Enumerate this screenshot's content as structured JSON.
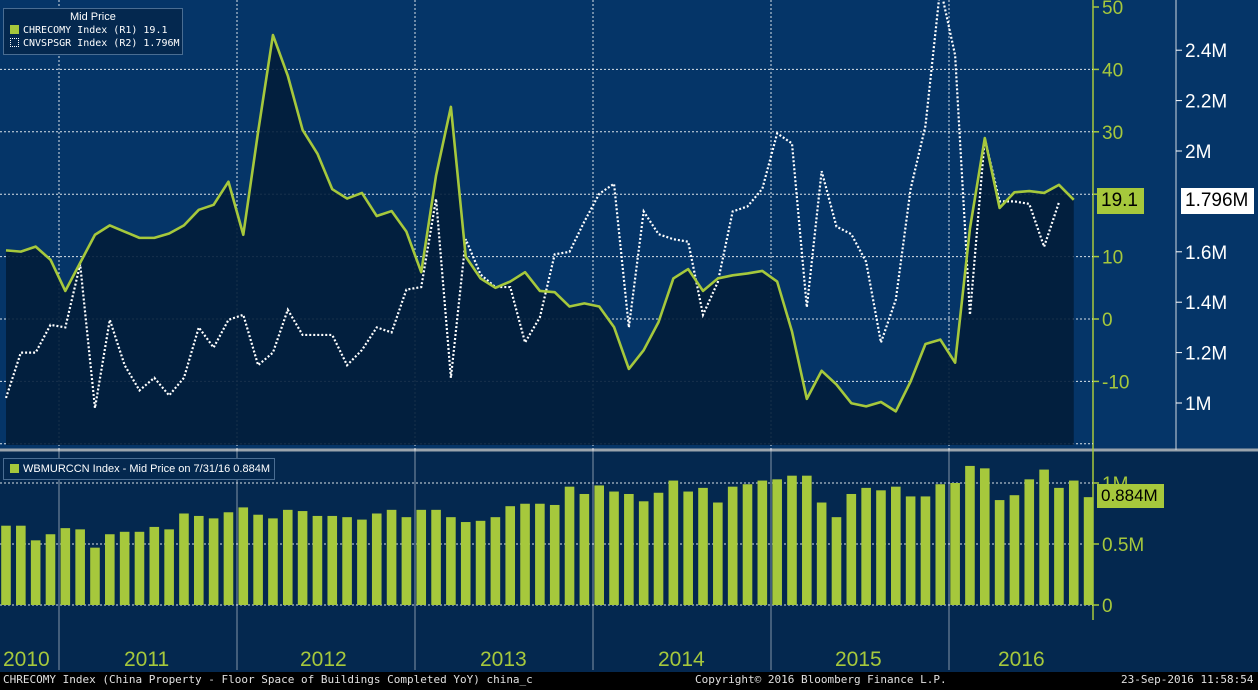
{
  "legend_top": {
    "header": "Mid Price",
    "entries": [
      {
        "label": "CHRECOMY Index  (R1) 19.1",
        "marker": "green-square-icon"
      },
      {
        "label": "CNVSPSGR Index  (R2) 1.796M",
        "marker": "dotted-square-icon"
      }
    ]
  },
  "legend_bottom": {
    "label": "WBMURCCN Index - Mid Price on 7/31/16  0.884M",
    "marker": "green-square-icon"
  },
  "last_value_tags": {
    "r1": "19.1",
    "r2": "1.796M",
    "volume": "0.884M"
  },
  "footer": {
    "left": "CHRECOMY Index (China Property - Floor Space of Buildings Completed YoY) china_c",
    "center": "Copyright© 2016 Bloomberg Finance L.P.",
    "right": "23-Sep-2016 11:58:54"
  },
  "colors": {
    "upper_bg": "#053568",
    "lower_bg": "#04284f",
    "area_fill": "#021d3a",
    "green": "#a6c83c",
    "grid": "#ffffff"
  },
  "chart_data": [
    {
      "type": "line",
      "x_labels": [
        "2010",
        "2011",
        "2012",
        "2013",
        "2014",
        "2015",
        "2016"
      ],
      "grid": true,
      "series": [
        {
          "name": "CHRECOMY Index",
          "axis": "R1",
          "style": "solid green line with filled area",
          "ylim": [
            -20,
            50
          ],
          "ticks": [
            -10,
            0,
            10,
            20,
            30,
            40,
            50
          ],
          "tick_labels": [
            "-10",
            "0",
            "10",
            "",
            "30",
            "40",
            "50"
          ],
          "values": [
            11,
            10.8,
            11.6,
            9.5,
            4.5,
            9,
            13.5,
            15,
            14,
            13,
            13,
            13.7,
            15,
            17.5,
            18.3,
            22,
            13.5,
            30,
            45.5,
            39,
            30.3,
            26.5,
            20.8,
            19.3,
            20.2,
            16.5,
            17.3,
            14,
            7.5,
            23,
            34,
            10,
            6.5,
            5,
            6,
            7.5,
            4.5,
            4.3,
            2,
            2.5,
            2,
            -1.3,
            -8,
            -5,
            -0.5,
            6.5,
            8,
            4.5,
            6.5,
            7,
            7.3,
            7.7,
            6,
            -2,
            -12.8,
            -8.3,
            -10.5,
            -13.5,
            -14,
            -13.3,
            -14.8,
            -10,
            -4,
            -3.3,
            -7,
            14.5,
            29,
            17.8,
            20.3,
            20.5,
            20.2,
            21.5,
            19.1
          ]
        },
        {
          "name": "CNVSPSGR Index",
          "axis": "R2",
          "style": "dotted white line",
          "ylim": [
            800000,
            2600000
          ],
          "ticks": [
            1000000,
            1200000,
            1400000,
            1600000,
            2000000,
            2200000,
            2400000
          ],
          "tick_labels": [
            "1M",
            "1.2M",
            "1.4M",
            "1.6M",
            "2M",
            "2.2M",
            "2.4M"
          ],
          "values": [
            1020000,
            1200000,
            1200000,
            1310000,
            1300000,
            1550000,
            980000,
            1330000,
            1150000,
            1050000,
            1100000,
            1030000,
            1100000,
            1300000,
            1220000,
            1330000,
            1350000,
            1150000,
            1200000,
            1370000,
            1270000,
            1270000,
            1270000,
            1150000,
            1210000,
            1300000,
            1280000,
            1450000,
            1460000,
            1810000,
            1100000,
            1650000,
            1510000,
            1460000,
            1460000,
            1240000,
            1340000,
            1590000,
            1600000,
            1720000,
            1830000,
            1870000,
            1300000,
            1760000,
            1670000,
            1650000,
            1640000,
            1350000,
            1480000,
            1760000,
            1780000,
            1850000,
            2070000,
            2030000,
            1380000,
            1920000,
            1700000,
            1670000,
            1560000,
            1240000,
            1410000,
            1850000,
            2100000,
            2650000,
            2380000,
            1350000,
            2050000,
            1800000,
            1800000,
            1790000,
            1620000,
            1796000
          ]
        }
      ]
    },
    {
      "type": "bar",
      "series": [
        {
          "name": "WBMURCCN Index",
          "values": [
            0.65,
            0.65,
            0.53,
            0.58,
            0.63,
            0.62,
            0.47,
            0.58,
            0.6,
            0.6,
            0.64,
            0.62,
            0.75,
            0.73,
            0.71,
            0.76,
            0.8,
            0.74,
            0.71,
            0.78,
            0.77,
            0.73,
            0.73,
            0.72,
            0.7,
            0.75,
            0.78,
            0.72,
            0.78,
            0.78,
            0.72,
            0.68,
            0.69,
            0.72,
            0.81,
            0.83,
            0.83,
            0.82,
            0.97,
            0.91,
            0.98,
            0.93,
            0.91,
            0.85,
            0.92,
            1.02,
            0.93,
            0.96,
            0.84,
            0.97,
            0.99,
            1.02,
            1.03,
            1.06,
            1.06,
            0.84,
            0.72,
            0.91,
            0.96,
            0.94,
            0.97,
            0.89,
            0.89,
            0.99,
            1.0,
            1.14,
            1.12,
            0.86,
            0.9,
            1.03,
            1.11,
            0.96,
            1.02,
            0.884
          ]
        }
      ],
      "ylim": [
        0,
        1.3
      ],
      "ticks": [
        0,
        0.5,
        1.0
      ],
      "tick_labels": [
        "0",
        "0.5M",
        "1M"
      ]
    }
  ]
}
